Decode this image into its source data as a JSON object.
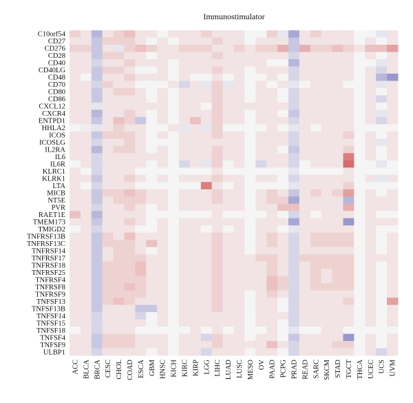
{
  "chart_data": {
    "type": "heatmap",
    "title": "Immunostimulator",
    "xlabel": "",
    "ylabel": "",
    "grid": false,
    "legend": "none",
    "value_range": [
      -1,
      1
    ],
    "colors": {
      "negative": "#5a5ab4",
      "neutral": "#f5f5f5",
      "positive": "#d24848",
      "missing": "#e6e6e6"
    },
    "columns": [
      "ACC",
      "BLCA",
      "BRCA",
      "CESC",
      "CHOL",
      "COAD",
      "ESCA",
      "GBM",
      "HNSC",
      "KICH",
      "KIRC",
      "KIRP",
      "LGG",
      "LIHC",
      "LUAD",
      "LUSC",
      "MESO",
      "OV",
      "PAAD",
      "PCPG",
      "PRAD",
      "READ",
      "SARC",
      "SKCM",
      "STAD",
      "TGCT",
      "THCA",
      "UCEC",
      "UCS",
      "UVM"
    ],
    "rows": [
      "C10orf54",
      "CD27",
      "CD276",
      "CD28",
      "CD40",
      "CD40LG",
      "CD48",
      "CD70",
      "CD80",
      "CD86",
      "CXCL12",
      "CXCR4",
      "ENTPD1",
      "HHLA2",
      "ICOS",
      "ICOSLG",
      "IL2RA",
      "IL6",
      "IL6R",
      "KLRC1",
      "KLRK1",
      "LTA",
      "MICB",
      "NT5E",
      "PVR",
      "RAET1E",
      "TMEM173",
      "TMIGD2",
      "TNFRSF13B",
      "TNFRSF13C",
      "TNFRSF14",
      "TNFRSF17",
      "TNFRSF18",
      "TNFRSF25",
      "TNFRSF4",
      "TNFRSF8",
      "TNFRSF9",
      "TNFSF13",
      "TNFSF13B",
      "TNFSF14",
      "TNFSF15",
      "TNFSF18",
      "TNFSF4",
      "TNFSF9",
      "ULBP1"
    ],
    "values": [
      [
        0.2,
        0.1,
        -0.4,
        0.1,
        0.2,
        0.3,
        0.1,
        0.1,
        0.0,
        0.1,
        0.1,
        0.1,
        0.2,
        0.1,
        0.1,
        0.1,
        0.0,
        0.0,
        0.2,
        -0.1,
        -0.5,
        0.1,
        0.2,
        0.1,
        0.1,
        0.1,
        0.0,
        0.0,
        -0.1,
        0.1
      ],
      [
        0.1,
        0.1,
        -0.3,
        0.2,
        0.2,
        0.2,
        0.1,
        0.0,
        0.1,
        0.0,
        0.1,
        0.1,
        0.1,
        0.2,
        0.1,
        0.1,
        0.0,
        0.1,
        0.1,
        0.1,
        -0.3,
        0.1,
        0.1,
        0.1,
        0.1,
        0.1,
        0.0,
        0.1,
        0.0,
        0.1
      ],
      [
        0.2,
        0.2,
        -0.3,
        0.1,
        -0.1,
        0.2,
        0.3,
        0.2,
        0.1,
        0.1,
        0.2,
        0.2,
        0.2,
        0.1,
        0.1,
        0.2,
        0.1,
        0.2,
        0.2,
        0.4,
        -0.3,
        0.4,
        0.2,
        0.2,
        0.3,
        0.2,
        0.1,
        0.3,
        0.3,
        0.5
      ],
      [
        0.1,
        0.1,
        -0.3,
        0.2,
        0.2,
        0.1,
        0.1,
        0.0,
        0.1,
        0.1,
        0.1,
        0.1,
        0.1,
        0.2,
        0.1,
        0.1,
        0.1,
        0.1,
        0.1,
        0.1,
        -0.2,
        0.1,
        0.1,
        0.1,
        0.1,
        0.1,
        0.0,
        0.1,
        0.0,
        0.1
      ],
      [
        0.1,
        0.1,
        -0.2,
        0.1,
        0.1,
        0.2,
        0.1,
        0.1,
        0.1,
        0.0,
        0.1,
        0.1,
        0.1,
        0.1,
        0.1,
        0.1,
        0.1,
        0.1,
        0.0,
        0.0,
        -0.4,
        0.1,
        0.1,
        0.1,
        0.1,
        0.1,
        0.0,
        0.0,
        -0.1,
        0.1
      ],
      [
        0.1,
        0.1,
        -0.3,
        0.2,
        0.2,
        0.1,
        0.0,
        0.0,
        0.1,
        0.0,
        0.1,
        0.1,
        0.1,
        0.2,
        0.1,
        0.1,
        0.0,
        0.1,
        0.1,
        0.1,
        -0.2,
        0.1,
        0.1,
        0.1,
        0.1,
        0.1,
        0.0,
        0.1,
        -0.2,
        0.1
      ],
      [
        0.1,
        0.0,
        -0.3,
        0.1,
        0.1,
        0.2,
        0.1,
        0.1,
        0.1,
        0.0,
        0.1,
        0.0,
        0.0,
        0.1,
        0.0,
        0.1,
        0.0,
        0.0,
        0.1,
        0.0,
        -0.2,
        0.1,
        0.1,
        0.1,
        0.1,
        0.1,
        0.0,
        0.1,
        -0.4,
        -0.6
      ],
      [
        0.1,
        0.1,
        -0.2,
        0.2,
        0.1,
        0.1,
        0.0,
        0.0,
        0.0,
        0.1,
        -0.2,
        0.1,
        -0.1,
        0.2,
        -0.1,
        0.1,
        0.0,
        0.1,
        0.0,
        0.1,
        -0.1,
        0.0,
        0.1,
        0.1,
        0.1,
        0.0,
        0.0,
        0.1,
        -0.1,
        0.1
      ],
      [
        0.1,
        0.1,
        -0.3,
        0.1,
        0.2,
        0.2,
        0.1,
        0.0,
        0.1,
        0.0,
        0.1,
        0.1,
        0.1,
        0.2,
        0.1,
        0.1,
        0.0,
        0.1,
        0.1,
        0.0,
        -0.2,
        0.1,
        0.1,
        0.1,
        0.1,
        0.1,
        0.0,
        0.1,
        0.0,
        0.1
      ],
      [
        0.1,
        0.1,
        -0.3,
        0.1,
        0.1,
        0.1,
        0.1,
        0.0,
        0.1,
        0.0,
        0.1,
        0.1,
        0.1,
        0.2,
        0.1,
        0.1,
        0.0,
        0.1,
        0.1,
        0.0,
        -0.2,
        0.1,
        0.1,
        0.1,
        0.1,
        0.1,
        0.0,
        0.1,
        -0.2,
        0.1
      ],
      [
        0.1,
        0.1,
        -0.1,
        0.1,
        0.1,
        0.1,
        0.1,
        0.1,
        0.1,
        0.0,
        0.1,
        0.1,
        0.0,
        0.2,
        0.1,
        0.1,
        0.1,
        0.1,
        0.1,
        0.1,
        -0.2,
        0.1,
        0.1,
        0.1,
        0.1,
        0.1,
        0.0,
        0.1,
        0.0,
        0.1
      ],
      [
        0.1,
        0.1,
        -0.4,
        0.1,
        0.1,
        0.2,
        0.1,
        0.0,
        0.1,
        0.0,
        0.1,
        0.1,
        0.1,
        0.2,
        0.1,
        0.1,
        0.0,
        0.1,
        0.1,
        0.0,
        -0.3,
        0.1,
        0.1,
        0.1,
        0.1,
        0.1,
        0.0,
        0.1,
        -0.1,
        0.1
      ],
      [
        0.1,
        0.1,
        -0.3,
        0.1,
        0.3,
        0.2,
        -0.3,
        0.0,
        0.1,
        0.0,
        0.1,
        0.3,
        0.1,
        0.2,
        0.1,
        0.1,
        0.0,
        0.1,
        0.1,
        0.1,
        -0.2,
        0.1,
        0.1,
        0.1,
        0.1,
        0.1,
        0.0,
        0.1,
        -0.2,
        0.1
      ],
      [
        0.0,
        -0.05,
        -0.1,
        0.1,
        0.2,
        0.1,
        0.1,
        0.0,
        0.0,
        0.1,
        -0.1,
        0.1,
        -0.1,
        0.2,
        0.0,
        0.0,
        0.0,
        0.0,
        0.1,
        0.0,
        -0.1,
        0.1,
        0.0,
        0.1,
        0.1,
        0.1,
        0.0,
        0.0,
        0.0,
        0.0
      ],
      [
        0.1,
        0.1,
        -0.3,
        0.2,
        0.2,
        0.2,
        0.1,
        0.0,
        0.1,
        0.0,
        0.1,
        0.1,
        0.1,
        0.2,
        0.1,
        0.1,
        0.0,
        0.1,
        0.1,
        0.1,
        -0.2,
        0.1,
        0.1,
        0.1,
        0.1,
        0.2,
        0.0,
        0.1,
        0.0,
        0.1
      ],
      [
        0.1,
        0.1,
        -0.2,
        0.1,
        0.1,
        0.2,
        0.1,
        0.0,
        0.0,
        0.0,
        0.1,
        0.1,
        0.1,
        0.1,
        0.1,
        0.1,
        0.0,
        0.1,
        0.1,
        0.1,
        -0.2,
        0.1,
        0.1,
        0.1,
        0.1,
        0.1,
        0.0,
        0.1,
        -0.1,
        0.1
      ],
      [
        0.1,
        0.1,
        -0.4,
        0.1,
        0.2,
        0.2,
        0.1,
        0.0,
        0.1,
        0.0,
        0.1,
        0.1,
        0.1,
        0.2,
        0.1,
        0.1,
        0.0,
        0.1,
        0.1,
        0.0,
        -0.3,
        0.1,
        0.1,
        0.1,
        0.1,
        0.2,
        0.0,
        0.1,
        0.0,
        0.1
      ],
      [
        0.1,
        0.1,
        -0.2,
        0.1,
        0.1,
        0.1,
        0.1,
        0.1,
        0.1,
        0.0,
        0.1,
        0.1,
        0.1,
        0.2,
        0.1,
        0.1,
        0.0,
        0.1,
        0.1,
        0.1,
        -0.2,
        0.1,
        0.1,
        0.1,
        0.1,
        0.7,
        0.0,
        0.1,
        0.0,
        0.1
      ],
      [
        0.0,
        0.1,
        -0.2,
        0.1,
        0.1,
        0.1,
        0.1,
        0.0,
        0.1,
        0.0,
        -0.2,
        0.1,
        -0.1,
        0.2,
        0.0,
        0.1,
        0.0,
        -0.2,
        0.1,
        0.1,
        -0.2,
        0.0,
        0.1,
        0.1,
        0.1,
        0.8,
        0.0,
        0.0,
        -0.1,
        0.0
      ],
      [
        0.1,
        0.0,
        -0.2,
        0.1,
        0.1,
        0.1,
        0.0,
        0.0,
        0.0,
        0.0,
        0.0,
        0.0,
        0.0,
        0.1,
        0.0,
        0.0,
        0.0,
        0.0,
        0.0,
        0.0,
        -0.1,
        0.0,
        0.0,
        0.0,
        0.0,
        0.1,
        0.0,
        0.0,
        0.0,
        0.0
      ],
      [
        0.1,
        0.1,
        -0.3,
        0.1,
        0.1,
        0.2,
        0.1,
        0.0,
        0.1,
        0.0,
        0.1,
        0.1,
        0.1,
        0.2,
        0.1,
        0.1,
        0.0,
        0.1,
        0.1,
        0.0,
        -0.2,
        0.1,
        0.1,
        0.1,
        0.1,
        0.1,
        0.0,
        0.1,
        -0.1,
        0.1
      ],
      [
        0.1,
        0.0,
        -0.2,
        0.1,
        0.1,
        0.1,
        0.0,
        0.0,
        0.0,
        0.0,
        0.0,
        0.0,
        0.7,
        0.1,
        0.0,
        0.1,
        0.0,
        0.0,
        0.0,
        0.0,
        -0.1,
        0.1,
        0.1,
        0.1,
        0.1,
        0.2,
        0.0,
        0.0,
        0.0,
        0.0
      ],
      [
        0.1,
        0.1,
        -0.3,
        0.2,
        0.2,
        0.3,
        0.2,
        0.1,
        0.1,
        0.0,
        0.1,
        0.1,
        0.1,
        0.2,
        0.1,
        0.1,
        0.0,
        0.1,
        0.2,
        0.1,
        -0.3,
        0.1,
        0.2,
        0.1,
        0.2,
        0.5,
        0.0,
        0.1,
        0.0,
        0.1
      ],
      [
        0.1,
        0.1,
        -0.3,
        0.1,
        0.2,
        0.2,
        0.2,
        0.1,
        0.1,
        0.0,
        0.1,
        0.1,
        0.1,
        0.2,
        0.1,
        0.1,
        0.0,
        0.1,
        0.2,
        0.2,
        -0.5,
        0.1,
        0.1,
        0.1,
        0.1,
        -0.4,
        0.0,
        0.1,
        0.1,
        0.1
      ],
      [
        0.1,
        0.1,
        -0.2,
        0.1,
        0.1,
        0.2,
        0.1,
        0.0,
        0.1,
        0.0,
        0.1,
        0.1,
        0.1,
        0.1,
        0.1,
        0.1,
        0.0,
        0.1,
        0.1,
        0.3,
        0.3,
        0.1,
        0.1,
        0.1,
        0.1,
        0.4,
        0.0,
        0.1,
        0.1,
        0.1
      ],
      [
        0.3,
        0.1,
        -0.4,
        0.1,
        0.1,
        0.1,
        0.1,
        0.0,
        0.0,
        0.0,
        0.0,
        0.0,
        0.0,
        0.1,
        0.0,
        0.0,
        0.0,
        0.0,
        0.1,
        0.0,
        -0.2,
        0.1,
        0.0,
        0.1,
        0.1,
        0.1,
        0.0,
        0.1,
        0.0,
        0.0
      ],
      [
        0.1,
        0.1,
        -0.3,
        0.1,
        0.1,
        0.2,
        0.1,
        0.0,
        0.1,
        0.0,
        0.1,
        0.1,
        0.1,
        0.1,
        0.1,
        0.1,
        0.0,
        0.1,
        0.1,
        0.1,
        -0.5,
        0.1,
        0.1,
        0.1,
        0.1,
        -0.6,
        0.0,
        0.1,
        0.1,
        0.1
      ],
      [
        0.0,
        0.1,
        -0.2,
        0.1,
        0.1,
        0.1,
        0.0,
        0.0,
        0.1,
        0.0,
        0.1,
        0.1,
        0.0,
        0.1,
        0.0,
        0.1,
        0.0,
        0.1,
        0.1,
        0.0,
        -0.1,
        0.1,
        0.1,
        0.1,
        0.1,
        0.1,
        0.0,
        0.1,
        0.0,
        0.0
      ],
      [
        0.1,
        0.1,
        -0.3,
        0.2,
        0.1,
        0.3,
        0.1,
        0.1,
        0.1,
        0.0,
        0.1,
        0.1,
        0.1,
        0.2,
        0.1,
        0.1,
        0.0,
        0.1,
        0.2,
        0.1,
        -0.2,
        0.1,
        0.2,
        0.2,
        0.2,
        0.2,
        0.0,
        0.1,
        0.0,
        0.1
      ],
      [
        0.1,
        0.1,
        -0.3,
        0.2,
        0.2,
        0.2,
        0.1,
        0.3,
        0.1,
        0.0,
        0.1,
        0.1,
        0.1,
        0.2,
        0.1,
        0.1,
        0.0,
        0.1,
        0.2,
        0.1,
        -0.2,
        0.1,
        0.2,
        0.2,
        0.2,
        0.2,
        0.0,
        0.1,
        0.0,
        0.1
      ],
      [
        0.1,
        0.1,
        -0.3,
        0.1,
        0.2,
        0.2,
        0.1,
        0.0,
        0.1,
        0.0,
        0.1,
        0.1,
        0.1,
        0.2,
        0.1,
        0.1,
        0.0,
        0.1,
        0.1,
        0.1,
        -0.2,
        0.1,
        0.1,
        0.1,
        0.1,
        0.1,
        0.0,
        0.1,
        0.0,
        0.1
      ],
      [
        0.1,
        0.1,
        -0.3,
        0.1,
        0.2,
        0.2,
        0.2,
        0.1,
        0.1,
        0.0,
        0.1,
        0.1,
        0.1,
        0.2,
        0.1,
        0.1,
        0.1,
        0.2,
        0.2,
        0.1,
        -0.2,
        0.2,
        0.2,
        0.2,
        0.2,
        0.2,
        0.0,
        0.1,
        0.1,
        0.1
      ],
      [
        0.1,
        0.1,
        -0.3,
        0.2,
        0.2,
        0.2,
        0.3,
        0.1,
        0.1,
        0.0,
        0.1,
        0.1,
        0.1,
        0.2,
        0.1,
        0.1,
        0.1,
        0.1,
        0.2,
        0.1,
        -0.2,
        0.1,
        0.2,
        0.2,
        0.2,
        0.2,
        0.0,
        0.1,
        0.0,
        0.1
      ],
      [
        0.1,
        0.1,
        -0.3,
        0.2,
        0.2,
        0.2,
        0.3,
        0.1,
        0.1,
        0.0,
        0.1,
        0.1,
        0.1,
        0.2,
        0.1,
        0.1,
        0.1,
        0.1,
        0.2,
        0.1,
        -0.2,
        0.1,
        0.2,
        0.1,
        0.2,
        0.2,
        0.0,
        0.1,
        0.0,
        0.1
      ],
      [
        0.1,
        0.1,
        -0.3,
        0.2,
        0.2,
        0.2,
        0.2,
        0.1,
        0.1,
        0.0,
        0.1,
        0.1,
        0.1,
        0.2,
        0.1,
        0.1,
        0.1,
        0.1,
        0.3,
        0.2,
        -0.2,
        0.1,
        0.2,
        0.1,
        0.2,
        0.2,
        0.0,
        0.1,
        0.0,
        0.1
      ],
      [
        0.1,
        0.1,
        -0.3,
        0.2,
        0.2,
        0.3,
        0.2,
        0.1,
        0.1,
        0.0,
        0.1,
        0.1,
        0.1,
        0.2,
        0.1,
        0.1,
        0.1,
        0.1,
        0.3,
        0.2,
        -0.2,
        0.1,
        0.2,
        0.2,
        0.2,
        0.2,
        0.0,
        0.1,
        0.0,
        0.1
      ],
      [
        0.1,
        0.1,
        -0.3,
        0.2,
        0.2,
        0.2,
        0.2,
        0.1,
        0.1,
        0.0,
        0.1,
        0.1,
        0.1,
        0.2,
        0.1,
        0.1,
        0.0,
        0.1,
        0.2,
        0.1,
        -0.2,
        0.1,
        0.1,
        0.1,
        0.1,
        0.1,
        0.0,
        0.1,
        0.0,
        0.1
      ],
      [
        0.1,
        0.1,
        -0.3,
        0.2,
        0.3,
        0.2,
        0.1,
        0.1,
        0.1,
        0.0,
        0.1,
        0.1,
        0.1,
        0.2,
        0.1,
        0.1,
        0.0,
        0.1,
        0.1,
        0.0,
        -0.2,
        0.1,
        0.1,
        0.1,
        0.1,
        0.2,
        0.0,
        0.1,
        0.0,
        0.5
      ],
      [
        0.1,
        0.1,
        -0.3,
        0.1,
        0.1,
        0.1,
        -0.3,
        -0.3,
        0.1,
        0.0,
        0.1,
        0.1,
        0.1,
        0.2,
        0.1,
        0.1,
        0.0,
        0.1,
        0.1,
        0.0,
        -0.2,
        0.1,
        0.1,
        0.1,
        0.1,
        0.1,
        0.0,
        0.1,
        0.0,
        0.1
      ],
      [
        0.1,
        0.1,
        -0.2,
        0.1,
        0.1,
        0.1,
        -0.2,
        0.0,
        0.1,
        0.0,
        0.1,
        0.1,
        0.1,
        0.1,
        0.1,
        0.1,
        0.0,
        0.1,
        0.1,
        0.1,
        -0.2,
        0.1,
        0.1,
        0.1,
        0.1,
        0.1,
        0.0,
        0.1,
        0.0,
        0.1
      ],
      [
        0.1,
        0.1,
        -0.2,
        0.1,
        0.1,
        0.1,
        0.1,
        0.0,
        0.1,
        0.0,
        0.1,
        0.1,
        0.1,
        0.1,
        0.1,
        0.1,
        0.0,
        0.1,
        0.1,
        0.0,
        -0.2,
        0.1,
        0.1,
        0.1,
        0.1,
        0.1,
        0.0,
        0.1,
        0.0,
        0.1
      ],
      [
        0.0,
        0.1,
        -0.2,
        0.1,
        0.1,
        0.1,
        0.0,
        0.0,
        0.0,
        0.0,
        0.0,
        0.1,
        0.0,
        0.1,
        0.0,
        0.1,
        0.0,
        0.0,
        0.1,
        0.0,
        -0.1,
        0.0,
        0.0,
        0.1,
        0.1,
        0.0,
        0.0,
        0.0,
        0.0,
        0.0
      ],
      [
        0.1,
        0.1,
        -0.3,
        0.2,
        0.2,
        0.2,
        0.1,
        0.1,
        0.1,
        0.0,
        0.1,
        0.1,
        -0.2,
        0.2,
        0.1,
        0.1,
        0.0,
        0.1,
        0.1,
        0.0,
        -0.3,
        0.1,
        0.1,
        0.1,
        0.1,
        -0.6,
        0.0,
        0.1,
        0.0,
        0.1
      ],
      [
        0.1,
        0.1,
        -0.3,
        0.2,
        0.2,
        0.2,
        0.1,
        0.1,
        0.1,
        0.0,
        0.1,
        0.1,
        0.1,
        0.2,
        0.1,
        0.1,
        0.1,
        0.1,
        0.3,
        0.1,
        -0.2,
        0.1,
        0.1,
        0.1,
        0.2,
        0.2,
        0.0,
        0.1,
        0.0,
        0.1
      ],
      [
        0.1,
        0.1,
        -0.2,
        0.1,
        0.1,
        0.1,
        0.1,
        0.0,
        0.1,
        0.0,
        0.1,
        0.1,
        -0.2,
        0.1,
        0.1,
        0.1,
        0.0,
        0.1,
        0.1,
        0.0,
        -0.2,
        0.1,
        0.1,
        0.1,
        0.1,
        0.1,
        0.0,
        0.1,
        -0.2,
        0.1
      ]
    ]
  }
}
